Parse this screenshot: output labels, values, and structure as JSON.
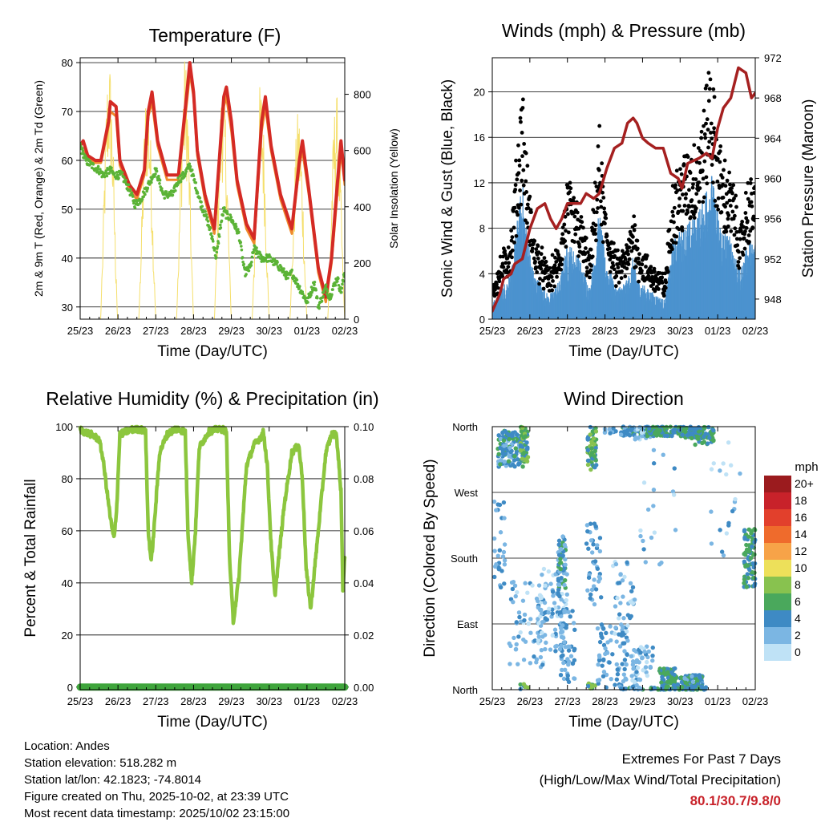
{
  "x_tick_labels": [
    "25/23",
    "26/23",
    "27/23",
    "28/23",
    "29/23",
    "30/23",
    "01/23",
    "02/23"
  ],
  "xlabel": "Time (Day/UTC)",
  "colors": {
    "red": "#d42a25",
    "orange": "#f08a2c",
    "green": "#5bb336",
    "yellow": "#f5df6c",
    "maroon": "#a52020",
    "gust": "#000000",
    "wind": "#4c93cf",
    "rh": "#8cc63e",
    "rain": "#3fa53c"
  },
  "chart_data": [
    {
      "id": "temperature",
      "type": "line",
      "title": "Temperature (F)",
      "ylabel": "2m & 9m T (Red, Orange) & 2m Td (Green)",
      "y2label": "Solar Insolation (Yellow)",
      "ylim": [
        27.5,
        81
      ],
      "yticks": [
        30,
        40,
        50,
        60,
        70,
        80
      ],
      "y2lim": [
        0,
        930
      ],
      "y2ticks": [
        0,
        200,
        400,
        600,
        800
      ],
      "xlim": [
        0,
        7
      ],
      "series": [
        {
          "name": "2m T",
          "color": "red",
          "x": [
            0,
            0.08,
            0.2,
            0.4,
            0.55,
            0.75,
            0.8,
            0.95,
            1.05,
            1.3,
            1.5,
            1.7,
            1.8,
            1.9,
            2.05,
            2.3,
            2.6,
            2.85,
            2.9,
            3.0,
            3.1,
            3.3,
            3.55,
            3.8,
            3.87,
            4.0,
            4.15,
            4.4,
            4.6,
            4.8,
            4.9,
            5.05,
            5.3,
            5.6,
            5.8,
            5.88,
            6.05,
            6.3,
            6.5,
            6.65,
            6.8,
            6.9,
            7.0
          ],
          "y": [
            63,
            64,
            61,
            60,
            60,
            68,
            72,
            71,
            60,
            55,
            53,
            58,
            70,
            74,
            64,
            57,
            57,
            76,
            80,
            74,
            62,
            53,
            46,
            73,
            75,
            68,
            56,
            47,
            44,
            68,
            73,
            63,
            53,
            46,
            60,
            64,
            54,
            38,
            32,
            40,
            55,
            64,
            56
          ]
        },
        {
          "name": "9m T",
          "color": "orange",
          "x": [
            0,
            0.2,
            0.4,
            0.55,
            0.75,
            0.8,
            0.95,
            1.05,
            1.3,
            1.5,
            1.7,
            1.8,
            1.9,
            2.05,
            2.3,
            2.6,
            2.85,
            2.9,
            3.0,
            3.1,
            3.3,
            3.55,
            3.8,
            3.87,
            4.0,
            4.15,
            4.4,
            4.6,
            4.8,
            4.9,
            5.05,
            5.3,
            5.6,
            5.8,
            5.88,
            6.05,
            6.3,
            6.5,
            6.65,
            6.8,
            6.9,
            7.0
          ],
          "y": [
            63,
            60.5,
            59.5,
            59.5,
            67,
            70,
            69,
            59,
            54,
            52,
            57,
            69,
            72,
            63,
            56,
            56,
            74,
            78,
            73,
            61,
            52,
            45,
            71,
            73,
            66,
            55,
            46,
            43,
            66,
            71,
            62,
            52,
            45,
            59,
            62,
            53,
            37,
            31,
            39,
            53,
            62,
            55
          ]
        },
        {
          "name": "2m Td",
          "color": "green",
          "x": [
            0,
            0.15,
            0.3,
            0.5,
            0.6,
            0.8,
            0.9,
            1.1,
            1.3,
            1.45,
            1.6,
            1.8,
            2.0,
            2.2,
            2.45,
            2.6,
            2.75,
            2.9,
            3.05,
            3.2,
            3.35,
            3.5,
            3.6,
            3.7,
            3.8,
            3.85,
            4.0,
            4.2,
            4.35,
            4.5,
            4.6,
            4.8,
            5.0,
            5.3,
            5.5,
            5.6,
            5.8,
            6.0,
            6.2,
            6.3,
            6.5,
            6.6,
            6.8,
            6.9,
            7.0
          ],
          "y": [
            63,
            60,
            59,
            58,
            57,
            58,
            57,
            57,
            54,
            51,
            52,
            55,
            58,
            53,
            53,
            56,
            57,
            59,
            55,
            51,
            48,
            44,
            40,
            46,
            50,
            49,
            48,
            45,
            37,
            38,
            42,
            40,
            40,
            38,
            36,
            37,
            34,
            31,
            35,
            30,
            34,
            32,
            36,
            33,
            37
          ]
        }
      ],
      "insolation_series": {
        "name": "Solar Insolation",
        "color": "yellow",
        "days": [
          {
            "start": 0.54,
            "peak": 0.76,
            "end": 0.99,
            "peak_value": 940
          },
          {
            "start": 1.55,
            "peak": 1.78,
            "end": 2.0,
            "peak_value": 860
          },
          {
            "start": 2.55,
            "peak": 2.77,
            "end": 3.0,
            "peak_value": 940
          },
          {
            "start": 3.55,
            "peak": 3.77,
            "end": 4.0,
            "peak_value": 880
          },
          {
            "start": 4.55,
            "peak": 4.77,
            "end": 5.0,
            "peak_value": 850
          },
          {
            "start": 5.55,
            "peak": 5.77,
            "end": 6.0,
            "peak_value": 750
          },
          {
            "start": 6.55,
            "peak": 6.77,
            "end": 7.0,
            "peak_value": 810
          }
        ]
      }
    },
    {
      "id": "winds",
      "type": "scatter",
      "title": "Winds (mph) & Pressure (mb)",
      "ylabel": "Sonic Wind & Gust (Blue, Black)",
      "y2label": "Station Pressure (Maroon)",
      "ylim": [
        0,
        23
      ],
      "yticks": [
        0,
        4,
        8,
        12,
        16,
        20
      ],
      "y2lim": [
        946,
        972
      ],
      "y2ticks": [
        948,
        952,
        956,
        960,
        964,
        968,
        972
      ],
      "xlim": [
        0,
        7
      ],
      "wind_profile": {
        "x": [
          0,
          0.5,
          0.7,
          0.8,
          0.9,
          1.1,
          1.5,
          1.8,
          2.0,
          2.3,
          2.6,
          2.75,
          2.85,
          3.0,
          3.3,
          3.6,
          3.75,
          3.9,
          4.1,
          4.4,
          4.6,
          4.8,
          5.1,
          5.4,
          5.6,
          5.8,
          5.95,
          6.1,
          6.4,
          6.6,
          6.8,
          7.0
        ],
        "y": [
          1,
          3,
          7,
          9,
          6,
          3,
          1.5,
          2.5,
          5,
          4,
          2,
          5,
          7,
          4,
          2,
          2.5,
          4,
          2.5,
          2,
          1.5,
          1.2,
          5,
          6,
          6.5,
          7.5,
          10,
          7.5,
          6,
          5,
          3,
          5,
          5
        ]
      },
      "pressure_series": {
        "name": "Station Pressure",
        "color": "maroon",
        "x": [
          0,
          0.2,
          0.3,
          0.5,
          0.6,
          0.8,
          1.0,
          1.2,
          1.4,
          1.55,
          1.7,
          1.85,
          2.0,
          2.15,
          2.35,
          2.5,
          2.7,
          2.85,
          3.05,
          3.25,
          3.45,
          3.6,
          3.75,
          3.85,
          4.0,
          4.15,
          4.35,
          4.55,
          4.75,
          4.95,
          5.05,
          5.2,
          5.5,
          5.7,
          5.85,
          6.0,
          6.15,
          6.35,
          6.55,
          6.75,
          6.9,
          7.0
        ],
        "y": [
          946.8,
          948.5,
          950,
          950.5,
          951.5,
          952,
          955,
          957,
          957.5,
          956,
          955,
          956,
          957.5,
          957.5,
          957.5,
          958.5,
          958,
          958.5,
          961,
          963,
          963.5,
          965.5,
          966,
          965.5,
          964,
          963.5,
          963,
          963,
          960.5,
          960,
          959,
          961.5,
          962,
          962.5,
          962,
          965,
          967,
          968,
          971,
          970.5,
          968,
          968.5
        ]
      }
    },
    {
      "id": "humidity",
      "type": "line",
      "title": "Relative Humidity (%) & Precipitation (in)",
      "ylabel": "Percent & Total Rainfall",
      "ylim": [
        -1,
        100
      ],
      "yticks": [
        0,
        20,
        40,
        60,
        80,
        100
      ],
      "y2lim": [
        -0.001,
        0.1
      ],
      "y2ticks": [
        "0.00",
        "0.02",
        "0.04",
        "0.06",
        "0.08",
        "0.10"
      ],
      "xlim": [
        0,
        7
      ],
      "series": [
        {
          "name": "RH",
          "color": "rh",
          "x": [
            0,
            0.1,
            0.3,
            0.5,
            0.6,
            0.78,
            0.85,
            0.9,
            0.97,
            1.05,
            1.2,
            1.4,
            1.6,
            1.73,
            1.8,
            1.88,
            1.95,
            2.1,
            2.3,
            2.5,
            2.6,
            2.78,
            2.85,
            2.95,
            3.05,
            3.15,
            3.4,
            3.6,
            3.77,
            3.87,
            3.95,
            4.05,
            4.2,
            4.4,
            4.6,
            4.78,
            4.85,
            4.95,
            5.05,
            5.15,
            5.4,
            5.6,
            5.78,
            5.88,
            5.98,
            6.1,
            6.3,
            6.5,
            6.65,
            6.78,
            6.9,
            6.95,
            7.0
          ],
          "y": [
            99,
            98,
            97,
            95,
            88,
            67,
            60,
            57,
            70,
            97,
            98,
            99,
            99,
            98,
            60,
            48,
            60,
            90,
            97,
            99,
            99,
            98,
            60,
            40,
            60,
            92,
            98,
            99,
            99,
            98,
            50,
            25,
            42,
            85,
            93,
            96,
            98,
            85,
            55,
            35,
            70,
            90,
            93,
            80,
            45,
            30,
            60,
            90,
            97,
            97,
            75,
            38,
            50
          ]
        },
        {
          "name": "Total Rainfall",
          "color": "rain",
          "x": [
            0,
            7
          ],
          "y": [
            0,
            0
          ]
        }
      ]
    },
    {
      "id": "direction",
      "type": "scatter",
      "title": "Wind Direction",
      "ylabel": "Direction (Colored By Speed)",
      "ytick_labels": [
        "North",
        "East",
        "South",
        "West",
        "North"
      ],
      "ylim": [
        0,
        360
      ],
      "xlim": [
        0,
        7
      ],
      "legend": {
        "title": "mph",
        "labels": [
          "20+",
          "18",
          "16",
          "14",
          "12",
          "10",
          "8",
          "6",
          "4",
          "2",
          "0"
        ],
        "colors": [
          "#9b1b1e",
          "#c8222a",
          "#e2402c",
          "#ef6b2c",
          "#f7a348",
          "#ede05a",
          "#88c24f",
          "#4aa85c",
          "#3e8ac4",
          "#7bb6e3",
          "#bfe2f6"
        ]
      }
    }
  ],
  "footer": {
    "location": "Location: Andes",
    "elevation": "Station elevation: 518.282 m",
    "latlon": "Station lat/lon: 42.1823; -74.8014",
    "created": "Figure created on Thu, 2025-10-02, at 23:39 UTC",
    "recent": "Most recent data timestamp: 2025/10/02 23:15:00",
    "extremes_title": "Extremes For Past 7 Days",
    "extremes_sub": "(High/Low/Max Wind/Total Precipitation)",
    "extremes_values": "80.1/30.7/9.8/0"
  }
}
